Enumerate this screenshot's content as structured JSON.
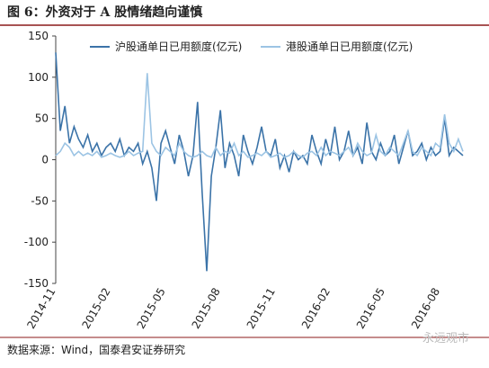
{
  "header": {
    "title": "图 6：外资对于 A 股情绪趋向谨慎"
  },
  "chart_data": {
    "type": "line",
    "categories": [
      "2014-11",
      null,
      null,
      null,
      null,
      null,
      null,
      null,
      null,
      null,
      null,
      null,
      "2015-02",
      null,
      null,
      null,
      null,
      null,
      null,
      null,
      null,
      null,
      null,
      null,
      "2015-05",
      null,
      null,
      null,
      null,
      null,
      null,
      null,
      null,
      null,
      null,
      null,
      "2015-08",
      null,
      null,
      null,
      null,
      null,
      null,
      null,
      null,
      null,
      null,
      null,
      "2015-11",
      null,
      null,
      null,
      null,
      null,
      null,
      null,
      null,
      null,
      null,
      null,
      "2016-02",
      null,
      null,
      null,
      null,
      null,
      null,
      null,
      null,
      null,
      null,
      null,
      "2016-05",
      null,
      null,
      null,
      null,
      null,
      null,
      null,
      null,
      null,
      null,
      null,
      "2016-08",
      null,
      null,
      null,
      null,
      null
    ],
    "series": [
      {
        "name": "沪股通单日已用额度(亿元)",
        "color": "#3b73a8",
        "values": [
          130,
          35,
          65,
          20,
          40,
          25,
          15,
          30,
          10,
          20,
          5,
          15,
          20,
          10,
          25,
          5,
          15,
          10,
          20,
          -5,
          10,
          -10,
          -50,
          20,
          35,
          15,
          -5,
          30,
          10,
          -20,
          5,
          70,
          -40,
          -135,
          -20,
          15,
          60,
          -10,
          20,
          5,
          -20,
          30,
          10,
          -5,
          15,
          40,
          10,
          5,
          25,
          -10,
          5,
          -15,
          10,
          0,
          5,
          -5,
          30,
          10,
          -5,
          25,
          5,
          40,
          0,
          10,
          35,
          5,
          15,
          -5,
          45,
          10,
          0,
          20,
          5,
          10,
          30,
          -5,
          15,
          35,
          5,
          10,
          20,
          0,
          15,
          5,
          10,
          50,
          5,
          15,
          10,
          5
        ]
      },
      {
        "name": "港股通单日已用额度(亿元)",
        "color": "#9cc4e4",
        "values": [
          5,
          10,
          20,
          15,
          5,
          10,
          5,
          8,
          5,
          10,
          3,
          5,
          8,
          5,
          3,
          5,
          10,
          5,
          8,
          10,
          105,
          20,
          10,
          5,
          15,
          10,
          5,
          20,
          10,
          5,
          3,
          5,
          10,
          5,
          3,
          15,
          5,
          10,
          8,
          20,
          5,
          10,
          3,
          5,
          8,
          5,
          10,
          3,
          5,
          8,
          3,
          5,
          10,
          5,
          3,
          8,
          10,
          5,
          15,
          5,
          10,
          8,
          5,
          10,
          15,
          5,
          20,
          10,
          5,
          8,
          30,
          10,
          5,
          15,
          10,
          5,
          20,
          35,
          10,
          5,
          15,
          10,
          5,
          20,
          15,
          55,
          20,
          10,
          25,
          10
        ]
      }
    ],
    "ylim": [
      -150,
      150
    ],
    "yticks": [
      -150,
      -100,
      -50,
      0,
      50,
      100,
      150
    ]
  },
  "footer": {
    "source": "数据来源：Wind，国泰君安证券研究",
    "watermark": "永远观市"
  }
}
